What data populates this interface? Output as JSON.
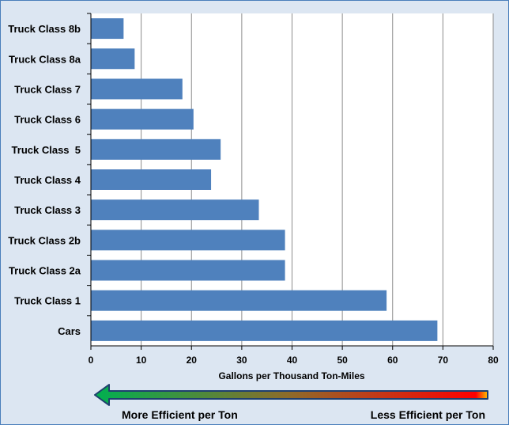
{
  "chart_data": {
    "type": "bar",
    "orientation": "horizontal",
    "categories": [
      "Truck Class 8b",
      "Truck Class 8a",
      "Truck Class 7",
      "Truck Class 6",
      "Truck Class  5",
      "Truck Class 4",
      "Truck Class 3",
      "Truck Class 2b",
      "Truck Class 2a",
      "Truck Class 1",
      "Cars"
    ],
    "values": [
      6.5,
      8.7,
      18.2,
      20.4,
      25.8,
      23.9,
      33.4,
      38.6,
      38.6,
      58.8,
      68.9
    ],
    "title": "",
    "xlabel": "Gallons per Thousand Ton-Miles",
    "ylabel": "",
    "xlim": [
      0,
      80
    ],
    "xticks": [
      0,
      10,
      20,
      30,
      40,
      50,
      60,
      70,
      80
    ],
    "grid": true,
    "bar_color": "#4f81bd",
    "background_color": "#dce6f2",
    "plot_background": "#ffffff"
  },
  "efficiency_legend": {
    "left_label": "More Efficient per Ton",
    "right_label": "Less Efficient per Ton",
    "gradient_start_color": "#00b050",
    "gradient_end_color": "#ff0000",
    "direction_icon": "left-arrow-icon"
  }
}
